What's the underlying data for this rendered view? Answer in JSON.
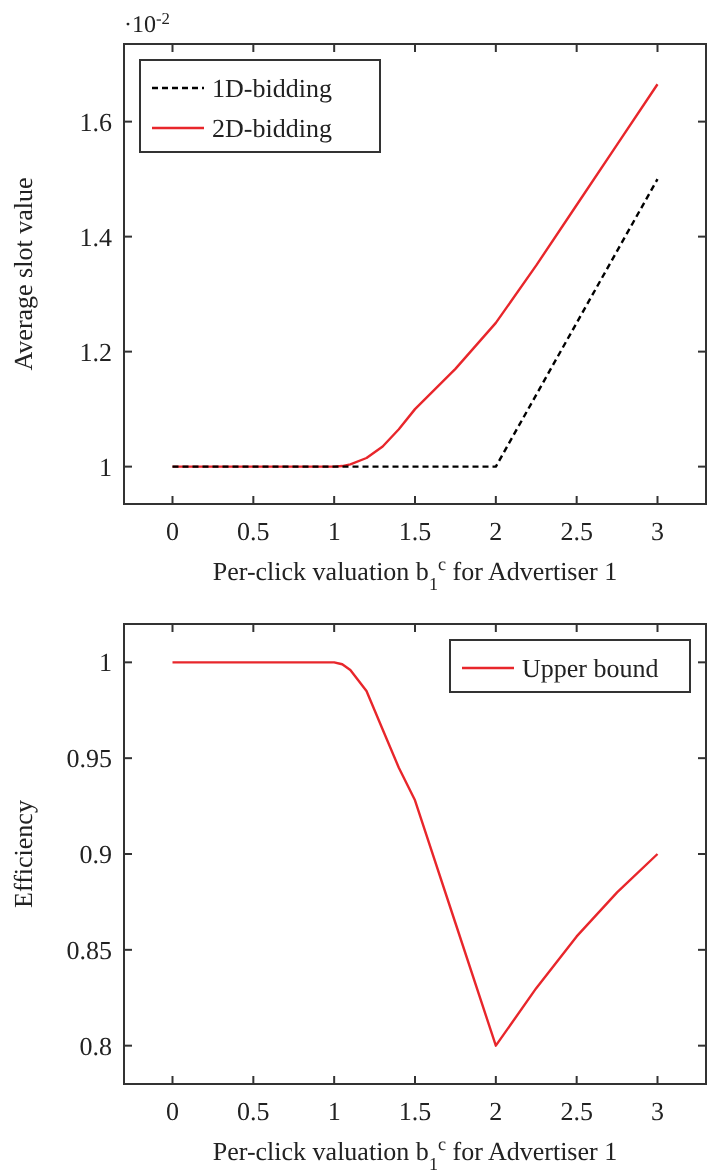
{
  "chart_data": [
    {
      "type": "line",
      "ylabel": "Average slot value",
      "xlabel": "Per-click valuation b$_{1}$$^{c}$ for Advertiser 1",
      "annotations": [
        "·10$^{-2}$"
      ],
      "xlim": [
        -0.3,
        3.3
      ],
      "xticks": [
        0,
        0.5,
        1,
        1.5,
        2,
        2.5,
        3
      ],
      "ylim": [
        0.935,
        1.735
      ],
      "yticks": [
        1,
        1.2,
        1.4,
        1.6
      ],
      "legend": "top left",
      "grid": false,
      "marker": "none",
      "series": [
        {
          "name": "1D-bidding",
          "color": "#000000",
          "line_style": "dashed",
          "x": [
            0,
            1,
            2,
            3
          ],
          "values": [
            1,
            1,
            1,
            1.5
          ]
        },
        {
          "name": "2D-bidding",
          "color": "#e8262b",
          "line_style": "solid",
          "x": [
            0,
            1,
            1.05,
            1.1,
            1.2,
            1.3,
            1.4,
            1.5,
            1.75,
            2,
            2.25,
            2.5,
            2.75,
            3
          ],
          "values": [
            1,
            1,
            1.001,
            1.004,
            1.015,
            1.035,
            1.065,
            1.1,
            1.17,
            1.25,
            1.35,
            1.455,
            1.56,
            1.665
          ]
        }
      ]
    },
    {
      "type": "line",
      "ylabel": "Efficiency",
      "xlabel": "Per-click valuation b$_{1}$$^{c}$ for Advertiser 1",
      "xlim": [
        -0.3,
        3.3
      ],
      "xticks": [
        0,
        0.5,
        1,
        1.5,
        2,
        2.5,
        3
      ],
      "ylim": [
        0.78,
        1.02
      ],
      "yticks": [
        0.8,
        0.85,
        0.9,
        0.95,
        1
      ],
      "legend": "top right",
      "grid": false,
      "marker": "none",
      "series": [
        {
          "name": "Upper bound",
          "color": "#e8262b",
          "line_style": "solid",
          "x": [
            0,
            1,
            1.05,
            1.1,
            1.2,
            1.25,
            1.3,
            1.4,
            1.5,
            1.75,
            2,
            2.25,
            2.5,
            2.75,
            3
          ],
          "values": [
            1,
            1,
            0.999,
            0.996,
            0.985,
            0.975,
            0.965,
            0.945,
            0.928,
            0.864,
            0.8,
            0.83,
            0.857,
            0.88,
            0.9
          ]
        }
      ]
    }
  ]
}
